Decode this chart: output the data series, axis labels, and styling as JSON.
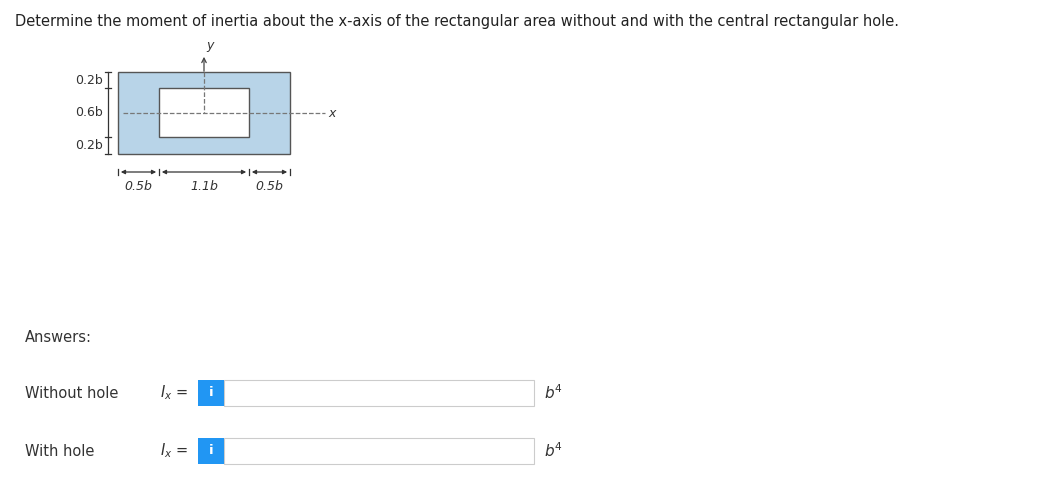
{
  "title": "Determine the moment of inertia about the x-axis of the rectangular area without and with the central rectangular hole.",
  "title_fontsize": 10.5,
  "bg_color": "#ffffff",
  "rect_fill_color": "#b8d4e8",
  "rect_edge_color": "#555555",
  "hole_fill_color": "#ffffff",
  "hole_edge_color": "#555555",
  "dim_color": "#333333",
  "axis_dashed_color": "#777777",
  "blue_btn_color": "#2196F3",
  "label_0p2b_top": "0.2b",
  "label_0p6b": "0.6b",
  "label_0p2b_bot": "0.2b",
  "label_0p5b_left": "0.5b",
  "label_1p1b": "1.1b",
  "label_0p5b_right": "0.5b",
  "label_x": "x",
  "label_y": "y",
  "answers_label": "Answers:",
  "without_hole_label": "Without hole",
  "with_hole_label": "With hole",
  "info_btn": "i",
  "ox": 118,
  "oy": 72,
  "b_scale": 82
}
